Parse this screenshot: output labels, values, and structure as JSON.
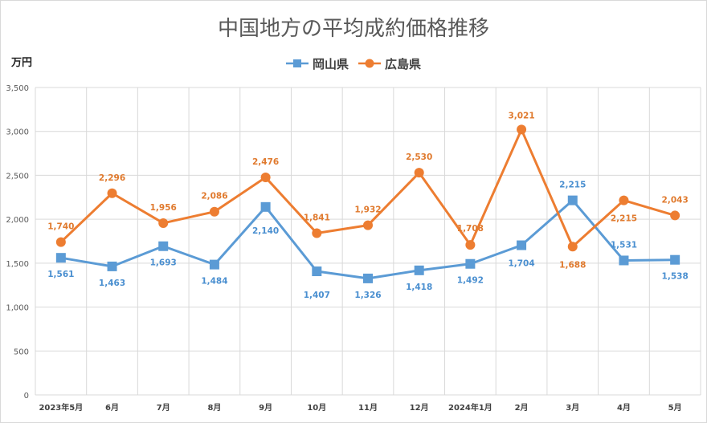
{
  "chart_data": {
    "type": "line",
    "title": "中国地方の平均成約価格推移",
    "ylabel": "万円",
    "xlabel": "",
    "ylim": [
      0,
      3500
    ],
    "yticks": [
      "0",
      "500",
      "1,000",
      "1,500",
      "2,000",
      "2,500",
      "3,000",
      "3,500"
    ],
    "ytick_values": [
      0,
      500,
      1000,
      1500,
      2000,
      2500,
      3000,
      3500
    ],
    "categories": [
      "2023年5月",
      "6月",
      "7月",
      "8月",
      "9月",
      "10月",
      "11月",
      "12月",
      "2024年1月",
      "2月",
      "3月",
      "4月",
      "5月"
    ],
    "grid": "vertical and horizontal",
    "legend_position": "top",
    "series": [
      {
        "name": "岡山県",
        "color": "#5b9bd5",
        "marker": "square",
        "values": [
          1561,
          1463,
          1693,
          1484,
          2140,
          1407,
          1326,
          1418,
          1492,
          1704,
          2215,
          1531,
          1538
        ],
        "labels": [
          "1,561",
          "1,463",
          "1,693",
          "1,484",
          "2,140",
          "1,407",
          "1,326",
          "1,418",
          "1,492",
          "1,704",
          "2,215",
          "1,531",
          "1,538"
        ]
      },
      {
        "name": "広島県",
        "color": "#ed7d31",
        "marker": "circle",
        "values": [
          1740,
          2296,
          1956,
          2086,
          2476,
          1841,
          1932,
          2530,
          1708,
          3021,
          1688,
          2215,
          2043
        ],
        "labels": [
          "1,740",
          "2,296",
          "1,956",
          "2,086",
          "2,476",
          "1,841",
          "1,932",
          "2,530",
          "1,708",
          "3,021",
          "1,688",
          "2,215",
          "2,043"
        ]
      }
    ]
  }
}
